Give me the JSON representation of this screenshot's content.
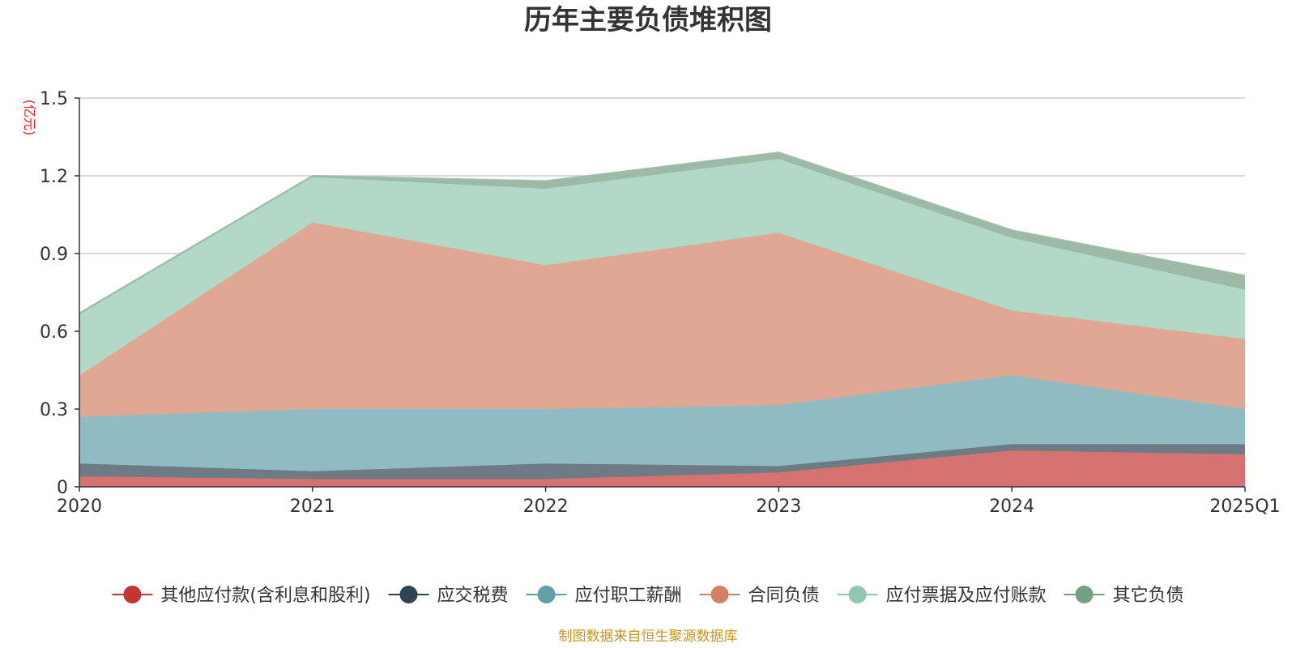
{
  "chart_data": {
    "type": "area",
    "stacked": true,
    "title": "历年主要负债堆积图",
    "unit_label": "(亿元)",
    "source": "制图数据来自恒生聚源数据库",
    "categories": [
      "2020",
      "2021",
      "2022",
      "2023",
      "2024",
      "2025Q1"
    ],
    "ylim": [
      0,
      1.5
    ],
    "yticks": [
      "0",
      "0.3",
      "0.6",
      "0.9",
      "1.2",
      "1.5"
    ],
    "ytick_values": [
      0,
      0.3,
      0.6,
      0.9,
      1.2,
      1.5
    ],
    "grid": true,
    "legend_position": "bottom",
    "series": [
      {
        "name": "其他应付款(含利息和股利)",
        "color": "#c23531",
        "fill": "#d67370",
        "values": [
          0.04,
          0.03,
          0.03,
          0.055,
          0.14,
          0.125
        ]
      },
      {
        "name": "应交税费",
        "color": "#2f4554",
        "fill": "#6e7b85",
        "values": [
          0.05,
          0.03,
          0.06,
          0.025,
          0.025,
          0.04
        ]
      },
      {
        "name": "应付职工薪酬",
        "color": "#61a0a8",
        "fill": "#90bbc2",
        "values": [
          0.18,
          0.24,
          0.21,
          0.235,
          0.265,
          0.135
        ]
      },
      {
        "name": "合同负债",
        "color": "#d48265",
        "fill": "#e0a794",
        "values": [
          0.16,
          0.72,
          0.555,
          0.665,
          0.25,
          0.27
        ]
      },
      {
        "name": "应付票据及应付账款",
        "color": "#91c7ae",
        "fill": "#b1d9c6",
        "values": [
          0.235,
          0.175,
          0.295,
          0.285,
          0.28,
          0.19
        ]
      },
      {
        "name": "其它负债",
        "color": "#749f83",
        "fill": "#9cbaa6",
        "values": [
          0.005,
          0.005,
          0.03,
          0.025,
          0.03,
          0.055
        ]
      }
    ]
  }
}
